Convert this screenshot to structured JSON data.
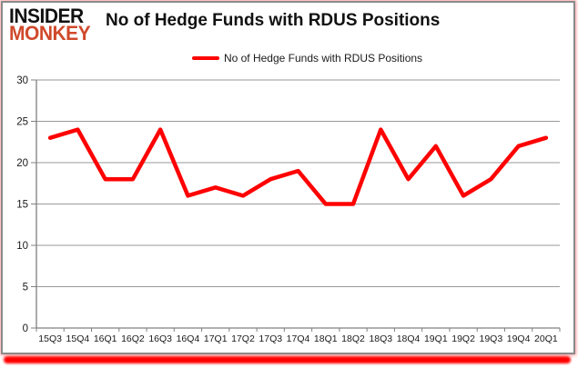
{
  "brand": {
    "line1": "INSIDER",
    "line2": "MONKEY"
  },
  "title": "No of Hedge Funds with RDUS Positions",
  "legend": {
    "label": "No of Hedge Funds with RDUS Positions"
  },
  "colors": {
    "series_red": "#ff0000",
    "brand_black": "#111111",
    "brand_red": "#d0492b",
    "grid_gray": "#999999",
    "axis_gray": "#808080",
    "label_dark": "#1a1a1a",
    "frame_gray": "#8a8a8a"
  },
  "chart_data": {
    "type": "line",
    "title": "No of Hedge Funds with RDUS Positions",
    "categories": [
      "15Q3",
      "15Q4",
      "16Q1",
      "16Q2",
      "16Q3",
      "16Q4",
      "17Q1",
      "17Q2",
      "17Q3",
      "17Q4",
      "18Q1",
      "18Q2",
      "18Q3",
      "18Q4",
      "19Q1",
      "19Q2",
      "19Q3",
      "19Q4",
      "20Q1"
    ],
    "series": [
      {
        "name": "No of Hedge Funds with RDUS Positions",
        "color": "#ff0000",
        "values": [
          23,
          24,
          18,
          18,
          24,
          16,
          17,
          16,
          18,
          19,
          15,
          15,
          24,
          18,
          22,
          16,
          18,
          22,
          23
        ]
      }
    ],
    "xlabel": "",
    "ylabel": "",
    "ylim": [
      0,
      30
    ],
    "ytick_step": 5,
    "grid": true,
    "legend_position": "top-center"
  }
}
